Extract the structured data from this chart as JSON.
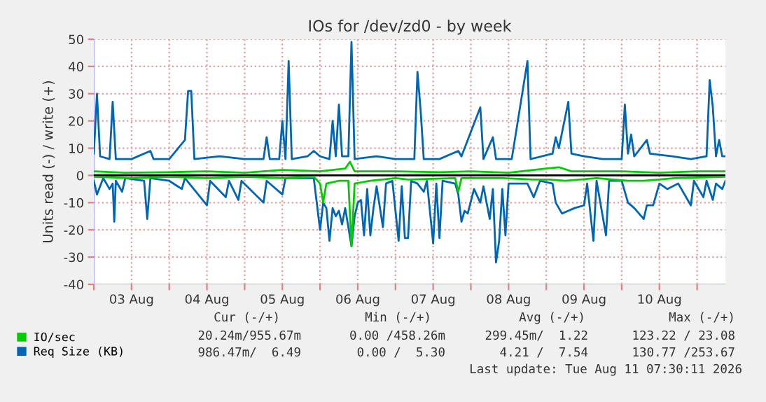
{
  "chart_data": {
    "type": "line",
    "title": "IOs for /dev/zd0 - by week",
    "ylabel": "Units read (-) / write (+)",
    "xlim": [
      "2026-08-03T00:00",
      "2026-08-11T09:00"
    ],
    "xticks": [
      {
        "value": "2026-08-03T00:00",
        "label": null
      },
      {
        "value": "2026-08-03T12:00",
        "label": "03 Aug"
      },
      {
        "value": "2026-08-04T00:00",
        "label": null
      },
      {
        "value": "2026-08-04T12:00",
        "label": "04 Aug"
      },
      {
        "value": "2026-08-05T00:00",
        "label": null
      },
      {
        "value": "2026-08-05T12:00",
        "label": "05 Aug"
      },
      {
        "value": "2026-08-06T00:00",
        "label": null
      },
      {
        "value": "2026-08-06T12:00",
        "label": "06 Aug"
      },
      {
        "value": "2026-08-07T00:00",
        "label": null
      },
      {
        "value": "2026-08-07T12:00",
        "label": "07 Aug"
      },
      {
        "value": "2026-08-08T00:00",
        "label": null
      },
      {
        "value": "2026-08-08T12:00",
        "label": "08 Aug"
      },
      {
        "value": "2026-08-09T00:00",
        "label": null
      },
      {
        "value": "2026-08-09T12:00",
        "label": "09 Aug"
      },
      {
        "value": "2026-08-10T00:00",
        "label": null
      },
      {
        "value": "2026-08-10T12:00",
        "label": "10 Aug"
      },
      {
        "value": "2026-08-11T00:00",
        "label": null
      }
    ],
    "ylim": [
      -40,
      50
    ],
    "yticks": [
      -40,
      -30,
      -20,
      -10,
      0,
      10,
      20,
      30,
      40,
      50
    ],
    "grid": true,
    "legend": "bottom left",
    "ref_lines": [
      {
        "axis": "y",
        "value": 0,
        "label": null,
        "color": "#000000"
      }
    ],
    "series": [
      {
        "name": "IO/sec",
        "color": "#00cc00",
        "x": [
          "2026-08-03T00:00",
          "2026-08-03T10:00",
          "2026-08-04T00:00",
          "2026-08-04T12:00",
          "2026-08-05T00:00",
          "2026-08-05T12:00",
          "2026-08-06T00:00",
          "2026-08-06T08:00",
          "2026-08-06T09:30",
          "2026-08-06T11:00",
          "2026-08-07T00:00",
          "2026-08-07T14:00",
          "2026-08-08T00:00",
          "2026-08-08T12:00",
          "2026-08-09T00:00",
          "2026-08-09T04:00",
          "2026-08-09T08:00",
          "2026-08-10T00:00",
          "2026-08-10T12:00",
          "2026-08-11T00:00",
          "2026-08-11T09:00"
        ],
        "values": [
          1.5,
          1,
          1.2,
          1.5,
          1,
          2,
          1.5,
          2.5,
          5,
          1.5,
          1.5,
          1.2,
          1.5,
          1,
          2.5,
          3,
          1.5,
          1.5,
          1,
          1.5,
          1.5
        ]
      },
      {
        "color": "#00cc00",
        "x": [
          "2026-08-03T00:00",
          "2026-08-03T12:00",
          "2026-08-04T00:00",
          "2026-08-04T12:00",
          "2026-08-05T00:00",
          "2026-08-05T12:00",
          "2026-08-05T22:00",
          "2026-08-06T00:00",
          "2026-08-06T01:00",
          "2026-08-06T02:00",
          "2026-08-06T06:00",
          "2026-08-06T09:00",
          "2026-08-06T10:00",
          "2026-08-06T11:00",
          "2026-08-06T16:00",
          "2026-08-07T00:00",
          "2026-08-07T04:00",
          "2026-08-07T19:00",
          "2026-08-07T20:00",
          "2026-08-07T21:00",
          "2026-08-08T10:00",
          "2026-08-08T20:00",
          "2026-08-09T01:00",
          "2026-08-09T06:00",
          "2026-08-09T16:00",
          "2026-08-10T02:00",
          "2026-08-10T07:00",
          "2026-08-10T17:00",
          "2026-08-11T09:00"
        ],
        "values": [
          -0.5,
          -1,
          -0.5,
          -1,
          -0.5,
          -1,
          -0.5,
          -3,
          -10,
          -3,
          -2,
          -2,
          -26,
          -3,
          -2,
          -1,
          -1.5,
          -1,
          -6,
          -1,
          -1,
          -1.5,
          -1.5,
          -2,
          -1,
          -2,
          -2,
          -1,
          -0.5
        ]
      },
      {
        "name": "Req Size (KB)",
        "color": "#0066b3",
        "x": [
          "2026-08-03T00:00",
          "2026-08-03T01:00",
          "2026-08-03T02:00",
          "2026-08-03T05:00",
          "2026-08-03T06:00",
          "2026-08-03T07:00",
          "2026-08-03T12:00",
          "2026-08-03T18:00",
          "2026-08-03T19:00",
          "2026-08-04T00:00",
          "2026-08-04T05:00",
          "2026-08-04T06:00",
          "2026-08-04T07:00",
          "2026-08-04T08:00",
          "2026-08-04T16:00",
          "2026-08-05T00:00",
          "2026-08-05T06:00",
          "2026-08-05T07:00",
          "2026-08-05T08:00",
          "2026-08-05T11:00",
          "2026-08-05T12:00",
          "2026-08-05T13:00",
          "2026-08-05T14:00",
          "2026-08-05T15:00",
          "2026-08-05T20:00",
          "2026-08-05T22:00",
          "2026-08-06T00:00",
          "2026-08-06T03:00",
          "2026-08-06T04:00",
          "2026-08-06T05:00",
          "2026-08-06T06:00",
          "2026-08-06T07:00",
          "2026-08-06T09:00",
          "2026-08-06T10:00",
          "2026-08-06T11:00",
          "2026-08-06T18:00",
          "2026-08-07T00:00",
          "2026-08-07T06:00",
          "2026-08-07T07:00",
          "2026-08-07T08:00",
          "2026-08-07T09:00",
          "2026-08-07T14:00",
          "2026-08-07T20:00",
          "2026-08-07T21:00",
          "2026-08-08T03:00",
          "2026-08-08T04:00",
          "2026-08-08T07:00",
          "2026-08-08T08:00",
          "2026-08-08T13:00",
          "2026-08-08T18:00",
          "2026-08-08T19:00",
          "2026-08-09T02:00",
          "2026-08-09T03:00",
          "2026-08-09T04:00",
          "2026-08-09T07:00",
          "2026-08-09T08:00",
          "2026-08-09T12:00",
          "2026-08-09T18:00",
          "2026-08-10T00:00",
          "2026-08-10T01:00",
          "2026-08-10T02:00",
          "2026-08-10T03:00",
          "2026-08-10T04:00",
          "2026-08-10T08:00",
          "2026-08-10T09:00",
          "2026-08-10T16:00",
          "2026-08-10T22:00",
          "2026-08-11T03:00",
          "2026-08-11T04:00",
          "2026-08-11T05:00",
          "2026-08-11T06:00",
          "2026-08-11T07:00",
          "2026-08-11T08:00",
          "2026-08-11T09:00"
        ],
        "values": [
          8,
          30,
          7,
          6,
          27,
          6,
          6,
          9,
          6,
          6,
          13,
          31,
          31,
          6,
          7,
          6,
          6,
          14,
          6,
          6,
          20,
          6,
          42,
          6,
          7,
          9,
          7,
          6,
          20,
          7,
          26,
          7,
          7,
          49,
          6,
          7,
          6,
          6,
          38,
          24,
          6,
          6,
          9,
          7,
          25,
          6,
          14,
          6,
          6,
          42,
          6,
          8,
          14,
          10,
          27,
          8,
          7,
          6,
          6,
          26,
          8,
          15,
          7,
          13,
          8,
          7,
          6,
          7,
          35,
          25,
          7,
          13,
          7,
          7
        ]
      },
      {
        "color": "#0066b3",
        "x": [
          "2026-08-03T00:00",
          "2026-08-03T01:00",
          "2026-08-03T03:00",
          "2026-08-03T05:00",
          "2026-08-03T06:00",
          "2026-08-03T06:30",
          "2026-08-03T07:00",
          "2026-08-03T09:00",
          "2026-08-03T10:00",
          "2026-08-03T16:00",
          "2026-08-03T17:00",
          "2026-08-03T18:00",
          "2026-08-04T00:00",
          "2026-08-04T04:00",
          "2026-08-04T05:00",
          "2026-08-04T12:00",
          "2026-08-04T13:00",
          "2026-08-04T18:00",
          "2026-08-04T19:00",
          "2026-08-04T22:00",
          "2026-08-04T23:00",
          "2026-08-05T06:00",
          "2026-08-05T07:00",
          "2026-08-05T12:00",
          "2026-08-05T13:00",
          "2026-08-05T22:00",
          "2026-08-06T00:00",
          "2026-08-06T01:00",
          "2026-08-06T02:00",
          "2026-08-06T03:00",
          "2026-08-06T04:00",
          "2026-08-06T05:00",
          "2026-08-06T06:00",
          "2026-08-06T07:00",
          "2026-08-06T08:00",
          "2026-08-06T10:00",
          "2026-08-06T11:00",
          "2026-08-06T12:00",
          "2026-08-06T13:00",
          "2026-08-06T14:00",
          "2026-08-06T15:00",
          "2026-08-06T16:00",
          "2026-08-06T17:00",
          "2026-08-06T18:00",
          "2026-08-06T20:00",
          "2026-08-06T21:00",
          "2026-08-06T23:00",
          "2026-08-07T01:00",
          "2026-08-07T02:00",
          "2026-08-07T03:00",
          "2026-08-07T04:00",
          "2026-08-07T05:00",
          "2026-08-07T07:00",
          "2026-08-07T09:00",
          "2026-08-07T10:00",
          "2026-08-07T12:00",
          "2026-08-07T13:00",
          "2026-08-07T14:00",
          "2026-08-07T15:00",
          "2026-08-07T19:00",
          "2026-08-07T20:00",
          "2026-08-07T21:00",
          "2026-08-07T22:00",
          "2026-08-07T23:00",
          "2026-08-08T01:00",
          "2026-08-08T03:00",
          "2026-08-08T04:00",
          "2026-08-08T06:00",
          "2026-08-08T07:00",
          "2026-08-08T08:00",
          "2026-08-08T09:00",
          "2026-08-08T10:00",
          "2026-08-08T11:00",
          "2026-08-08T12:00",
          "2026-08-08T14:00",
          "2026-08-08T16:00",
          "2026-08-08T18:00",
          "2026-08-08T20:00",
          "2026-08-08T22:00",
          "2026-08-09T02:00",
          "2026-08-09T03:00",
          "2026-08-09T05:00",
          "2026-08-09T07:00",
          "2026-08-09T09:00",
          "2026-08-09T12:00",
          "2026-08-09T13:00",
          "2026-08-09T15:00",
          "2026-08-09T16:00",
          "2026-08-09T19:00",
          "2026-08-09T20:00",
          "2026-08-10T00:00",
          "2026-08-10T02:00",
          "2026-08-10T04:00",
          "2026-08-10T07:00",
          "2026-08-10T08:00",
          "2026-08-10T10:00",
          "2026-08-10T12:00",
          "2026-08-10T14:30",
          "2026-08-10T18:00",
          "2026-08-10T22:00",
          "2026-08-10T23:00",
          "2026-08-11T02:00",
          "2026-08-11T03:00",
          "2026-08-11T05:00",
          "2026-08-11T06:00",
          "2026-08-11T08:00",
          "2026-08-11T09:00"
        ],
        "values": [
          -2,
          -7,
          -1,
          -5,
          -3,
          -17,
          -2,
          -6,
          -1,
          -2,
          -16,
          -1,
          -2,
          -5,
          -1,
          -11,
          -2,
          -8,
          -2,
          -9,
          -2,
          -10,
          -2,
          -7,
          -1,
          -1,
          -20,
          -10,
          -12,
          -24,
          -12,
          -15,
          -13,
          -18,
          -12,
          -26,
          -15,
          -10,
          -9,
          -22,
          -5,
          -22,
          -12,
          -4,
          -19,
          -3,
          -2,
          -24,
          -4,
          -23,
          -23,
          -2,
          -3,
          -6,
          -2,
          -25,
          -3,
          -23,
          -2,
          -3,
          -7,
          -17,
          -13,
          -14,
          -5,
          -10,
          -4,
          -16,
          -5,
          -32,
          -24,
          -5,
          -22,
          -3,
          -3,
          -3,
          -3,
          -8,
          -2,
          -3,
          -10,
          -14,
          -13,
          -12,
          -11,
          -3,
          -24,
          -2,
          -22,
          -2,
          -2,
          -10,
          -12,
          -16,
          -11,
          -11,
          -3,
          -5,
          -3,
          -11,
          -2,
          -8,
          -2,
          -9,
          -3,
          -5,
          -2
        ]
      }
    ],
    "annotations": [
      "Cur (-/+)",
      "Min (-/+)",
      "Avg (-/+)",
      "Max (-/+)",
      "20.24m/955.67m",
      "0.00 /458.26m",
      "299.45m/  1.22",
      "123.22 / 23.08",
      "986.47m/  6.49",
      "0.00 /  5.30",
      "4.21 /  7.54",
      "130.77 /253.67",
      "Last update: Tue Aug 11 07:30:11 2026"
    ]
  }
}
